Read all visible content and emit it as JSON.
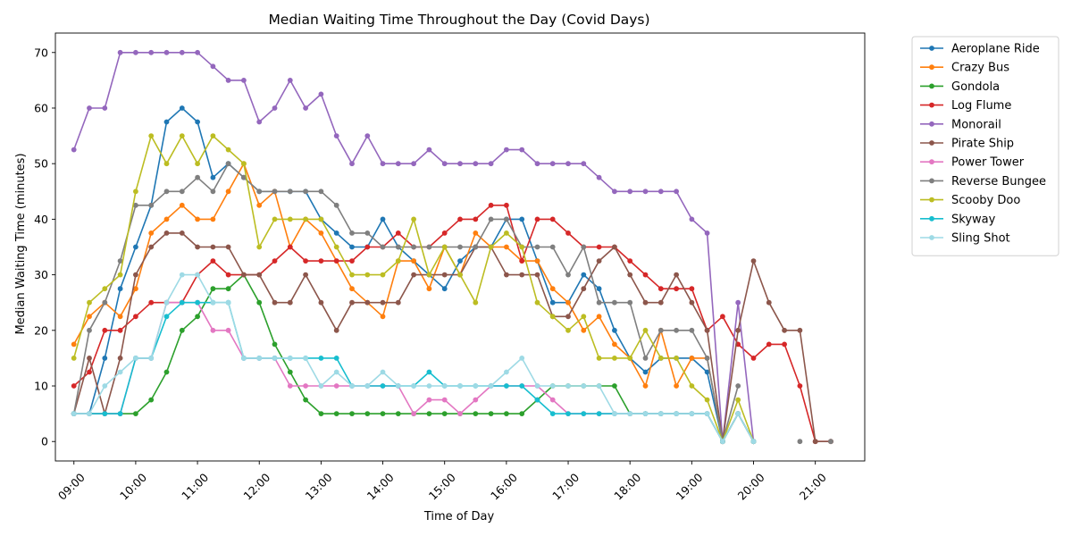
{
  "chart_data": {
    "type": "line",
    "title": "Median Waiting Time Throughout the Day (Covid Days)",
    "xlabel": "Time of Day",
    "ylabel": "Median Waiting Time (minutes)",
    "xlim": [
      "08:42",
      "21:48"
    ],
    "ylim": [
      -3.5,
      73.5
    ],
    "x_ticks": [
      "09:00",
      "10:00",
      "11:00",
      "12:00",
      "13:00",
      "14:00",
      "15:00",
      "16:00",
      "17:00",
      "18:00",
      "19:00",
      "20:00",
      "21:00"
    ],
    "y_ticks": [
      0,
      10,
      20,
      30,
      40,
      50,
      60,
      70
    ],
    "legend_position": "outside-top-right",
    "grid": false,
    "x": [
      "09:00",
      "09:15",
      "09:30",
      "09:45",
      "10:00",
      "10:15",
      "10:30",
      "10:45",
      "11:00",
      "11:15",
      "11:30",
      "11:45",
      "12:00",
      "12:15",
      "12:30",
      "12:45",
      "13:00",
      "13:15",
      "13:30",
      "13:45",
      "14:00",
      "14:15",
      "14:30",
      "14:45",
      "15:00",
      "15:15",
      "15:30",
      "15:45",
      "16:00",
      "16:15",
      "16:30",
      "16:45",
      "17:00",
      "17:15",
      "17:30",
      "17:45",
      "18:00",
      "18:15",
      "18:30",
      "18:45",
      "19:00",
      "19:15",
      "19:30",
      "19:45",
      "20:00",
      "20:15",
      "20:30",
      "20:45",
      "21:00",
      "21:15"
    ],
    "series": [
      {
        "name": "Aeroplane Ride",
        "color": "#1f77b4",
        "values": [
          5,
          5,
          15,
          27.5,
          35,
          42.5,
          57.5,
          60,
          57.5,
          47.5,
          50,
          47.5,
          45,
          45,
          45,
          45,
          40,
          37.5,
          35,
          35,
          40,
          35,
          32.5,
          30,
          27.5,
          32.5,
          35,
          35,
          40,
          40,
          32.5,
          25,
          25,
          30,
          27.5,
          20,
          15,
          12.5,
          15,
          15,
          15,
          12.5,
          0,
          5,
          0,
          null,
          null,
          null,
          null,
          null
        ]
      },
      {
        "name": "Crazy Bus",
        "color": "#ff7f0e",
        "values": [
          17.5,
          22.5,
          25,
          22.5,
          27.5,
          37.5,
          40,
          42.5,
          40,
          40,
          45,
          50,
          42.5,
          45,
          35,
          40,
          37.5,
          32.5,
          27.5,
          25,
          22.5,
          32.5,
          32.5,
          27.5,
          35,
          30,
          37.5,
          35,
          35,
          32.5,
          32.5,
          27.5,
          25,
          20,
          22.5,
          17.5,
          15,
          10,
          20,
          10,
          15,
          15,
          0,
          5,
          0,
          null,
          null,
          null,
          null,
          null
        ]
      },
      {
        "name": "Gondola",
        "color": "#2ca02c",
        "values": [
          5,
          5,
          5,
          5,
          5,
          7.5,
          12.5,
          20,
          22.5,
          27.5,
          27.5,
          30,
          25,
          17.5,
          12.5,
          7.5,
          5,
          5,
          5,
          5,
          5,
          5,
          5,
          5,
          5,
          5,
          5,
          5,
          5,
          5,
          7.5,
          10,
          10,
          10,
          10,
          10,
          5,
          5,
          5,
          5,
          5,
          5,
          0,
          5,
          0,
          null,
          null,
          null,
          null,
          null
        ]
      },
      {
        "name": "Log Flume",
        "color": "#d62728",
        "values": [
          10,
          12.5,
          20,
          20,
          22.5,
          25,
          25,
          25,
          30,
          32.5,
          30,
          30,
          30,
          32.5,
          35,
          32.5,
          32.5,
          32.5,
          32.5,
          35,
          35,
          37.5,
          35,
          35,
          37.5,
          40,
          40,
          42.5,
          42.5,
          32.5,
          40,
          40,
          37.5,
          35,
          35,
          35,
          32.5,
          30,
          27.5,
          27.5,
          27.5,
          20,
          22.5,
          17.5,
          15,
          17.5,
          17.5,
          10,
          0,
          0
        ]
      },
      {
        "name": "Monorail",
        "color": "#9467bd",
        "values": [
          52.5,
          60,
          60,
          70,
          70,
          70,
          70,
          70,
          70,
          67.5,
          65,
          65,
          57.5,
          60,
          65,
          60,
          62.5,
          55,
          50,
          55,
          50,
          50,
          50,
          52.5,
          50,
          50,
          50,
          50,
          52.5,
          52.5,
          50,
          50,
          50,
          50,
          47.5,
          45,
          45,
          45,
          45,
          45,
          40,
          37.5,
          0,
          25,
          0,
          null,
          null,
          null,
          null,
          null
        ]
      },
      {
        "name": "Pirate Ship",
        "color": "#8c564b",
        "values": [
          5,
          15,
          5,
          15,
          30,
          35,
          37.5,
          37.5,
          35,
          35,
          35,
          30,
          30,
          25,
          25,
          30,
          25,
          20,
          25,
          25,
          25,
          25,
          30,
          30,
          30,
          30,
          35,
          35,
          30,
          30,
          30,
          22.5,
          22.5,
          27.5,
          32.5,
          35,
          30,
          25,
          25,
          30,
          25,
          20,
          0,
          20,
          32.5,
          25,
          20,
          20,
          0,
          0
        ]
      },
      {
        "name": "Power Tower",
        "color": "#e377c2",
        "values": [
          5,
          5,
          5,
          5,
          15,
          15,
          25,
          25,
          25,
          20,
          20,
          15,
          15,
          15,
          10,
          10,
          10,
          10,
          10,
          10,
          10,
          10,
          5,
          7.5,
          7.5,
          5,
          7.5,
          10,
          10,
          10,
          10,
          7.5,
          5,
          5,
          5,
          5,
          5,
          5,
          5,
          5,
          5,
          5,
          0,
          5,
          0,
          null,
          null,
          null,
          null,
          null
        ]
      },
      {
        "name": "Reverse Bungee",
        "color": "#7f7f7f",
        "values": [
          5,
          20,
          25,
          32.5,
          42.5,
          42.5,
          45,
          45,
          47.5,
          45,
          50,
          47.5,
          45,
          45,
          45,
          45,
          45,
          42.5,
          37.5,
          37.5,
          35,
          35,
          35,
          35,
          35,
          35,
          35,
          40,
          40,
          35,
          35,
          35,
          30,
          35,
          25,
          25,
          25,
          15,
          20,
          20,
          20,
          15,
          0,
          10,
          null,
          null,
          null,
          0,
          null,
          0
        ]
      },
      {
        "name": "Scooby Doo",
        "color": "#bcbd22",
        "values": [
          15,
          25,
          27.5,
          30,
          45,
          55,
          50,
          55,
          50,
          55,
          52.5,
          50,
          35,
          40,
          40,
          40,
          40,
          35,
          30,
          30,
          30,
          32.5,
          40,
          30,
          35,
          30,
          25,
          35,
          37.5,
          35,
          25,
          22.5,
          20,
          22.5,
          15,
          15,
          15,
          20,
          15,
          15,
          10,
          7.5,
          0,
          7.5,
          0,
          null,
          null,
          null,
          null,
          null
        ]
      },
      {
        "name": "Skyway",
        "color": "#17becf",
        "values": [
          5,
          5,
          5,
          5,
          15,
          15,
          22.5,
          25,
          25,
          25,
          25,
          15,
          15,
          15,
          15,
          15,
          15,
          15,
          10,
          10,
          10,
          10,
          10,
          12.5,
          10,
          10,
          10,
          10,
          10,
          10,
          7.5,
          5,
          5,
          5,
          5,
          5,
          5,
          5,
          5,
          5,
          5,
          5,
          0,
          5,
          0,
          null,
          null,
          null,
          null,
          null
        ]
      },
      {
        "name": "Sling Shot",
        "color": "#9edae5",
        "values": [
          5,
          5,
          10,
          12.5,
          15,
          15,
          25,
          30,
          30,
          25,
          25,
          15,
          15,
          15,
          15,
          15,
          10,
          12.5,
          10,
          10,
          12.5,
          10,
          10,
          10,
          10,
          10,
          10,
          10,
          12.5,
          15,
          10,
          10,
          10,
          10,
          10,
          5,
          5,
          5,
          5,
          5,
          5,
          5,
          0,
          5,
          0,
          null,
          null,
          null,
          null,
          null
        ]
      }
    ]
  }
}
